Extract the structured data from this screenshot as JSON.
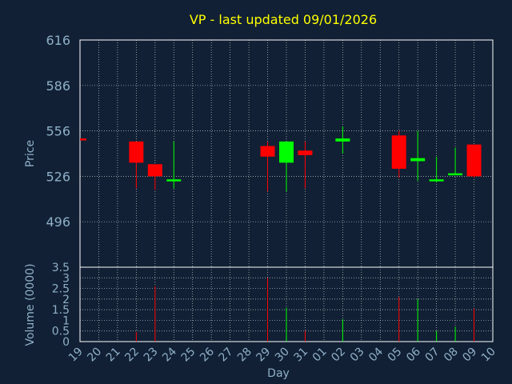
{
  "title": "VP - last updated 09/01/2026",
  "colors": {
    "background": "#112034",
    "title": "#ffff00",
    "axis_text": "#8fb0c8",
    "up": "#00ff00",
    "down": "#ff0000",
    "grid": "#ffffff"
  },
  "chart_data": [
    {
      "type": "candlestick",
      "ylabel": "Price",
      "ylim": [
        466,
        616
      ],
      "yticks": [
        616,
        586,
        556,
        526,
        496
      ],
      "grid": true,
      "x": [
        "19",
        "20",
        "21",
        "22",
        "23",
        "24",
        "25",
        "26",
        "27",
        "28",
        "29",
        "30",
        "31",
        "01",
        "02",
        "03",
        "04",
        "05",
        "06",
        "07",
        "08",
        "09",
        "10"
      ],
      "candles": [
        {
          "x": "19",
          "open": 551,
          "high": 551,
          "low": 551,
          "close": 550
        },
        {
          "x": "22",
          "open": 549,
          "high": 549,
          "low": 518,
          "close": 535
        },
        {
          "x": "23",
          "open": 534,
          "high": 534,
          "low": 517,
          "close": 526
        },
        {
          "x": "24",
          "open": 523,
          "high": 549,
          "low": 518,
          "close": 524
        },
        {
          "x": "29",
          "open": 546,
          "high": 549,
          "low": 516,
          "close": 539
        },
        {
          "x": "30",
          "open": 535,
          "high": 549,
          "low": 516,
          "close": 549
        },
        {
          "x": "31",
          "open": 543,
          "high": 549,
          "low": 518,
          "close": 540
        },
        {
          "x": "02",
          "open": 549,
          "high": 559,
          "low": 541,
          "close": 551
        },
        {
          "x": "05",
          "open": 553,
          "high": 556,
          "low": 525,
          "close": 531
        },
        {
          "x": "06",
          "open": 536,
          "high": 556,
          "low": 523,
          "close": 538
        },
        {
          "x": "07",
          "open": 523,
          "high": 539,
          "low": 522,
          "close": 524
        },
        {
          "x": "08",
          "open": 527,
          "high": 545,
          "low": 527,
          "close": 528
        },
        {
          "x": "09",
          "open": 547,
          "high": 547,
          "low": 525,
          "close": 526
        }
      ]
    },
    {
      "type": "bar",
      "ylabel": "Volume (0000)",
      "xlabel": "Day",
      "ylim": [
        0,
        3.5
      ],
      "yticks": [
        "0",
        "0.5",
        "1",
        "1.5",
        "2",
        "2.5",
        "3",
        "3.5"
      ],
      "grid": true,
      "x": [
        "19",
        "20",
        "21",
        "22",
        "23",
        "24",
        "25",
        "26",
        "27",
        "28",
        "29",
        "30",
        "31",
        "01",
        "02",
        "03",
        "04",
        "05",
        "06",
        "07",
        "08",
        "09",
        "10"
      ],
      "bars": [
        {
          "x": "22",
          "value": 0.45,
          "dir": "down"
        },
        {
          "x": "23",
          "value": 2.6,
          "dir": "down"
        },
        {
          "x": "29",
          "value": 3.0,
          "dir": "down"
        },
        {
          "x": "30",
          "value": 1.6,
          "dir": "up"
        },
        {
          "x": "31",
          "value": 0.5,
          "dir": "down"
        },
        {
          "x": "02",
          "value": 1.05,
          "dir": "up"
        },
        {
          "x": "05",
          "value": 2.1,
          "dir": "down"
        },
        {
          "x": "06",
          "value": 2.0,
          "dir": "up"
        },
        {
          "x": "07",
          "value": 0.5,
          "dir": "up"
        },
        {
          "x": "08",
          "value": 0.7,
          "dir": "up"
        },
        {
          "x": "09",
          "value": 1.55,
          "dir": "down"
        }
      ]
    }
  ]
}
